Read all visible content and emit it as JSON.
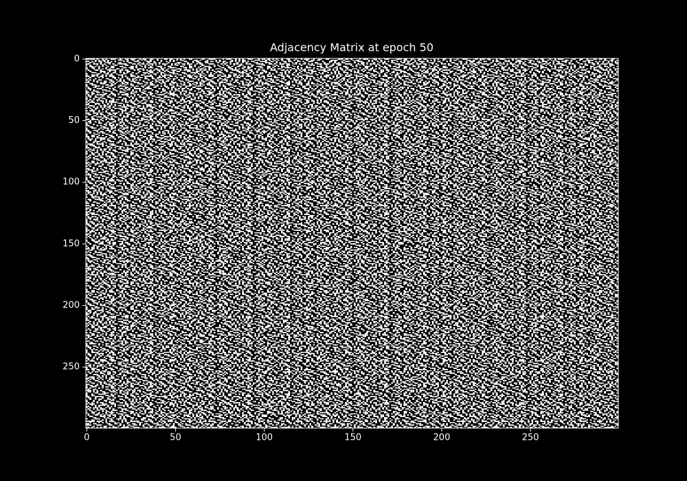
{
  "chart_data": {
    "type": "heatmap",
    "title": "Adjacency Matrix at epoch 50",
    "xlim": [
      -0.5,
      299.5
    ],
    "ylim": [
      299.5,
      -0.5
    ],
    "xticks": [
      0,
      50,
      100,
      150,
      200,
      250
    ],
    "yticks": [
      0,
      50,
      100,
      150,
      200,
      250
    ]
  }
}
